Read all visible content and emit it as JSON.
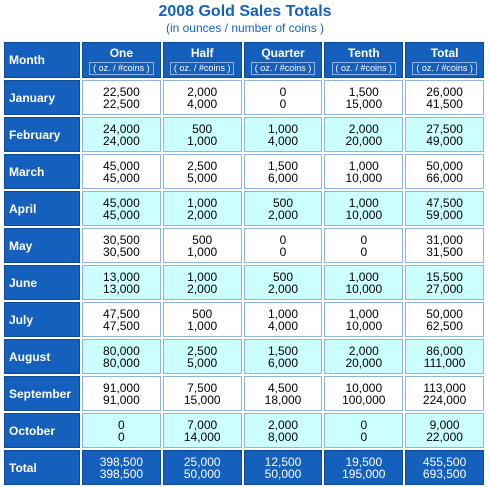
{
  "title": "2008 Gold Sales Totals",
  "subtitle": "(in  ounces  / number of coins  )",
  "columns": [
    {
      "name": "Month",
      "unit": ""
    },
    {
      "name": "One",
      "unit": "( oz. / #coins )"
    },
    {
      "name": "Half",
      "unit": "( oz. / #coins )"
    },
    {
      "name": "Quarter",
      "unit": "( oz. / #coins )"
    },
    {
      "name": "Tenth",
      "unit": "( oz. / #coins )"
    },
    {
      "name": "Total",
      "unit": "( oz. / #coins )"
    }
  ],
  "rows": [
    {
      "month": "January",
      "cells": [
        [
          "22,500",
          "22,500"
        ],
        [
          "2,000",
          "4,000"
        ],
        [
          "0",
          "0"
        ],
        [
          "1,500",
          "15,000"
        ],
        [
          "26,000",
          "41,500"
        ]
      ]
    },
    {
      "month": "February",
      "cells": [
        [
          "24,000",
          "24,000"
        ],
        [
          "500",
          "1,000"
        ],
        [
          "1,000",
          "4,000"
        ],
        [
          "2,000",
          "20,000"
        ],
        [
          "27,500",
          "49,000"
        ]
      ]
    },
    {
      "month": "March",
      "cells": [
        [
          "45,000",
          "45,000"
        ],
        [
          "2,500",
          "5,000"
        ],
        [
          "1,500",
          "6,000"
        ],
        [
          "1,000",
          "10,000"
        ],
        [
          "50,000",
          "66,000"
        ]
      ]
    },
    {
      "month": "April",
      "cells": [
        [
          "45,000",
          "45,000"
        ],
        [
          "1,000",
          "2,000"
        ],
        [
          "500",
          "2,000"
        ],
        [
          "1,000",
          "10,000"
        ],
        [
          "47,500",
          "59,000"
        ]
      ]
    },
    {
      "month": "May",
      "cells": [
        [
          "30,500",
          "30,500"
        ],
        [
          "500",
          "1,000"
        ],
        [
          "0",
          "0"
        ],
        [
          "0",
          "0"
        ],
        [
          "31,000",
          "31,500"
        ]
      ]
    },
    {
      "month": "June",
      "cells": [
        [
          "13,000",
          "13,000"
        ],
        [
          "1,000",
          "2,000"
        ],
        [
          "500",
          "2,000"
        ],
        [
          "1,000",
          "10,000"
        ],
        [
          "15,500",
          "27,000"
        ]
      ]
    },
    {
      "month": "July",
      "cells": [
        [
          "47,500",
          "47,500"
        ],
        [
          "500",
          "1,000"
        ],
        [
          "1,000",
          "4,000"
        ],
        [
          "1,000",
          "10,000"
        ],
        [
          "50,000",
          "62,500"
        ]
      ]
    },
    {
      "month": "August",
      "cells": [
        [
          "80,000",
          "80,000"
        ],
        [
          "2,500",
          "5,000"
        ],
        [
          "1,500",
          "6,000"
        ],
        [
          "2,000",
          "20,000"
        ],
        [
          "86,000",
          "111,000"
        ]
      ]
    },
    {
      "month": "September",
      "cells": [
        [
          "91,000",
          "91,000"
        ],
        [
          "7,500",
          "15,000"
        ],
        [
          "4,500",
          "18,000"
        ],
        [
          "10,000",
          "100,000"
        ],
        [
          "113,000",
          "224,000"
        ]
      ]
    },
    {
      "month": "October",
      "cells": [
        [
          "0",
          "0"
        ],
        [
          "7,000",
          "14,000"
        ],
        [
          "2,000",
          "8,000"
        ],
        [
          "0",
          "0"
        ],
        [
          "9,000",
          "22,000"
        ]
      ]
    }
  ],
  "total": {
    "month": "Total",
    "cells": [
      [
        "398,500",
        "398,500"
      ],
      [
        "25,000",
        "50,000"
      ],
      [
        "12,500",
        "50,000"
      ],
      [
        "19,500",
        "195,000"
      ],
      [
        "455,500",
        "693,500"
      ]
    ]
  },
  "colors": {
    "header_blue": "#1560bd",
    "row_cyan": "#ccffff",
    "row_white": "#ffffff"
  }
}
